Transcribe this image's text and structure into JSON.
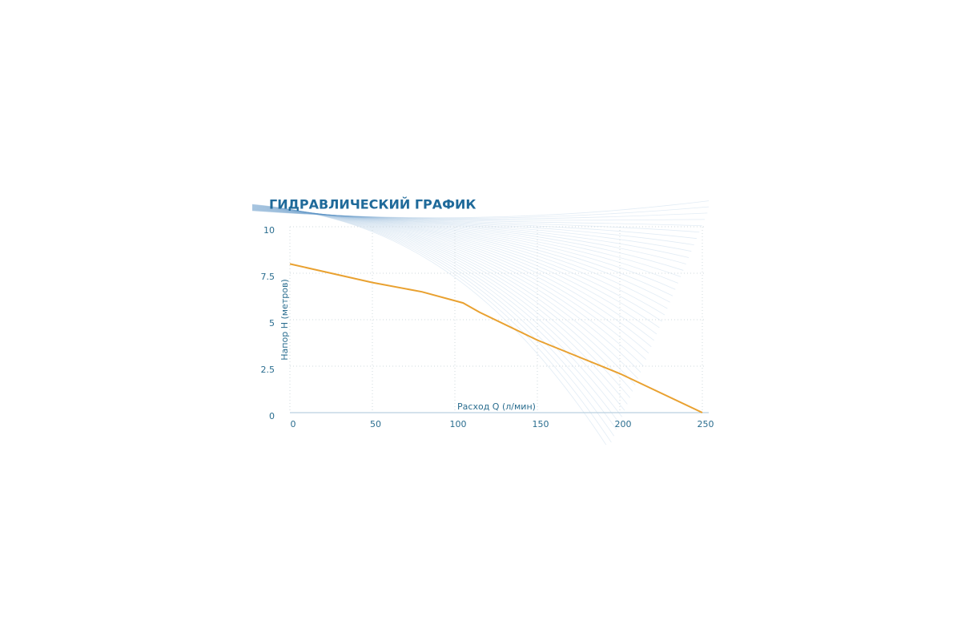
{
  "chart_data": {
    "type": "line",
    "title": "ГИДРАВЛИЧЕСКИЙ ГРАФИК",
    "x_label": "Расход Q (л/мин)",
    "y_label": "Напор Н (метров)",
    "x": [
      0,
      50,
      80,
      105,
      115,
      150,
      200,
      250
    ],
    "values": [
      8.0,
      7.0,
      6.5,
      5.9,
      5.4,
      3.9,
      2.1,
      0
    ],
    "color": "#e9a130",
    "xlim": [
      0,
      250
    ],
    "ylim": [
      0,
      10
    ],
    "xticks": [
      0,
      50,
      100,
      150,
      200,
      250
    ],
    "yticks": [
      0,
      2.5,
      5,
      7.5,
      10
    ],
    "grid": true
  }
}
